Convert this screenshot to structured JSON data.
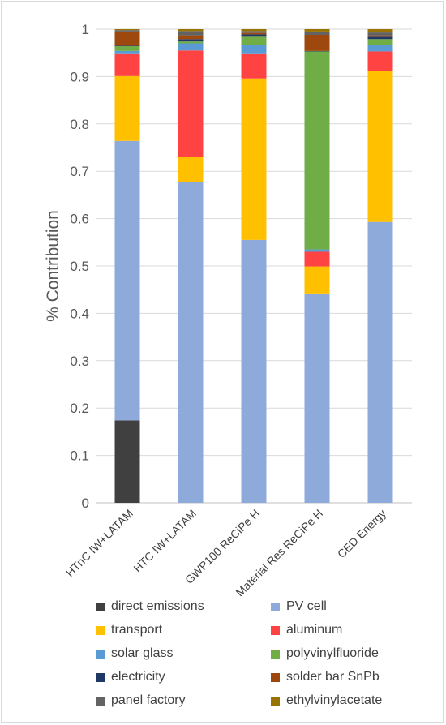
{
  "chart_data": {
    "type": "bar",
    "stacked": true,
    "title": "",
    "xlabel": "",
    "ylabel": "% Contribution",
    "ylim": [
      0,
      1
    ],
    "yticks": [
      "0",
      "0.1",
      "0.2",
      "0.3",
      "0.4",
      "0.5",
      "0.6",
      "0.7",
      "0.8",
      "0.9",
      "1"
    ],
    "ytick_values": [
      0,
      0.1,
      0.2,
      0.3,
      0.4,
      0.5,
      0.6,
      0.7,
      0.8,
      0.9,
      1
    ],
    "grid": "horizontal",
    "legend_position": "bottom",
    "categories": [
      "HTnC IW+LATAM",
      "HTC IW+LATAM",
      "GWP100 ReCiPe H",
      "Material Res ReCiPe H",
      "CED Energy"
    ],
    "series": [
      {
        "name": "direct emissions",
        "color": "#404040",
        "values": [
          0.174,
          0,
          0,
          0,
          0
        ]
      },
      {
        "name": "PV cell",
        "color": "#8eaadb",
        "values": [
          0.59,
          0.677,
          0.555,
          0.442,
          0.593
        ]
      },
      {
        "name": "transport",
        "color": "#ffc000",
        "values": [
          0.137,
          0.053,
          0.341,
          0.057,
          0.318
        ]
      },
      {
        "name": "aluminum",
        "color": "#ff4343",
        "values": [
          0.048,
          0.225,
          0.053,
          0.031,
          0.042
        ]
      },
      {
        "name": "solar glass",
        "color": "#5b9bd5",
        "values": [
          0.005,
          0.015,
          0.018,
          0.005,
          0.013
        ]
      },
      {
        "name": "polyvinylfluoride",
        "color": "#70ad47",
        "values": [
          0.01,
          0.004,
          0.017,
          0.418,
          0.013
        ]
      },
      {
        "name": "electricity",
        "color": "#203864",
        "values": [
          0.001,
          0.005,
          0.005,
          0.001,
          0.005
        ]
      },
      {
        "name": "solder bar SnPb",
        "color": "#9e480e",
        "values": [
          0.03,
          0.008,
          0.003,
          0.034,
          0.003
        ]
      },
      {
        "name": "panel factory",
        "color": "#636363",
        "values": [
          0.003,
          0.009,
          0.004,
          0.007,
          0.006
        ]
      },
      {
        "name": "ethylvinylacetate",
        "color": "#997300",
        "values": [
          0.002,
          0.004,
          0.004,
          0.005,
          0.007
        ]
      }
    ]
  }
}
